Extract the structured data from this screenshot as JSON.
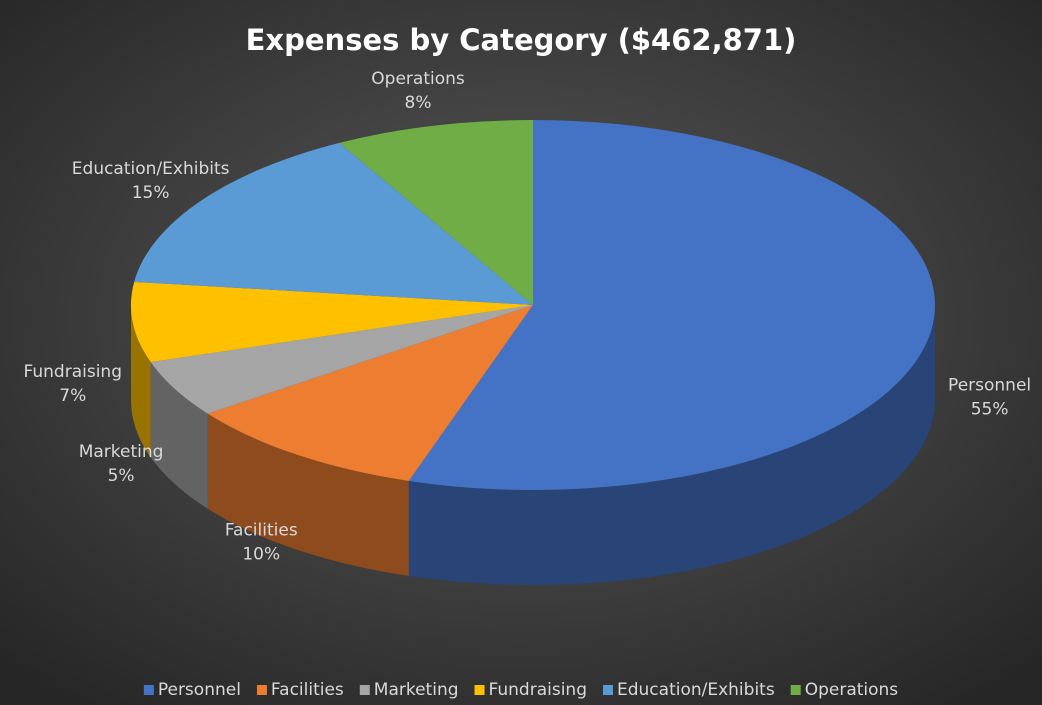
{
  "chart_data": {
    "type": "pie3d",
    "title": "Expenses by Category ($462,871)",
    "categories": [
      "Personnel",
      "Facilities",
      "Marketing",
      "Fundraising",
      "Education/Exhibits",
      "Operations"
    ],
    "values": [
      55,
      10,
      5,
      7,
      15,
      8
    ],
    "value_labels": [
      "55%",
      "10%",
      "5%",
      "7%",
      "15%",
      "8%"
    ],
    "colors": [
      "#4472c4",
      "#ed7d31",
      "#a5a5a5",
      "#ffc000",
      "#5b9bd5",
      "#70ad47"
    ],
    "legend": "bottom"
  }
}
